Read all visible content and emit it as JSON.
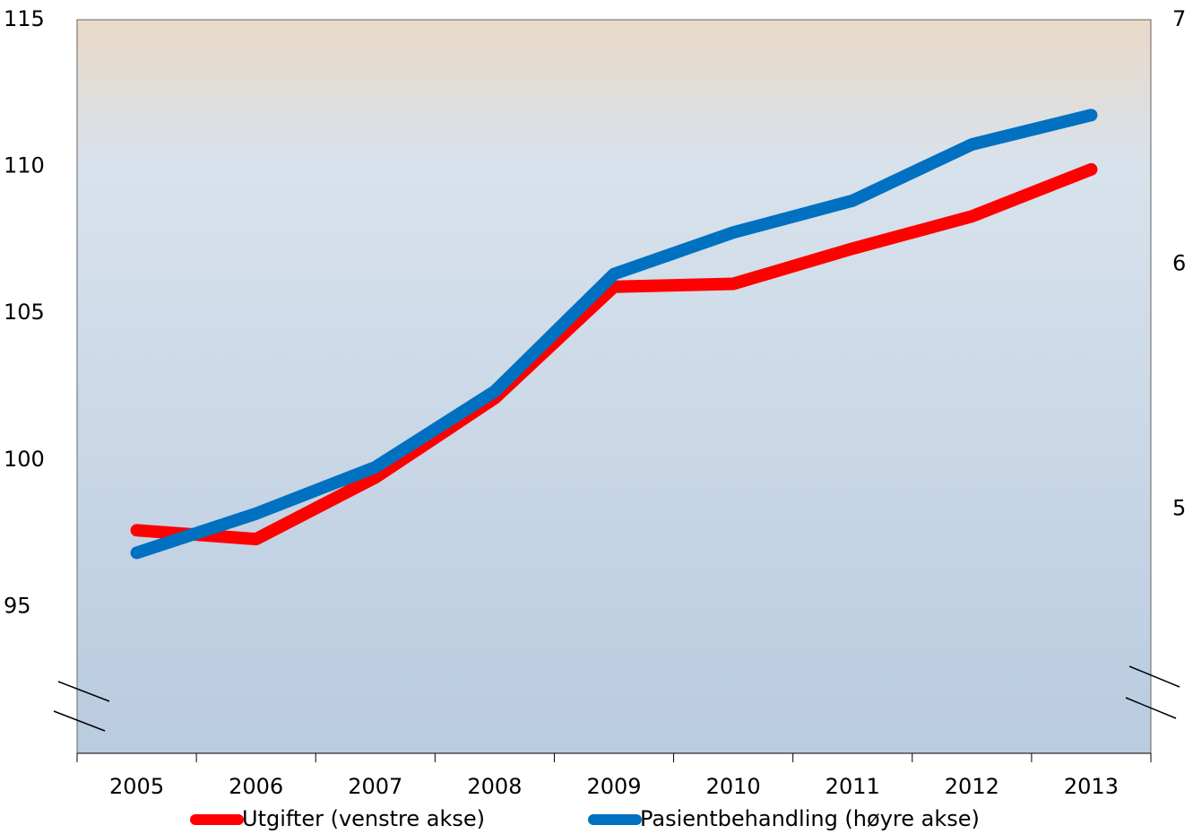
{
  "chart_data": {
    "type": "line",
    "categories": [
      "2005",
      "2006",
      "2007",
      "2008",
      "2009",
      "2010",
      "2011",
      "2012",
      "2013"
    ],
    "series": [
      {
        "name": "Utgifter (venstre akse)",
        "color": "#ff0000",
        "values": [
          97.6,
          97.3,
          99.4,
          102.1,
          105.9,
          106.0,
          107.2,
          108.3,
          109.9
        ]
      },
      {
        "name": "Pasientbehandling (høyre akse)",
        "color": "#0070c0",
        "axis": "y2",
        "values": [
          4.82,
          4.98,
          5.17,
          5.48,
          5.96,
          6.13,
          6.26,
          6.49,
          6.61
        ]
      }
    ],
    "ylim": [
      90,
      115
    ],
    "yticks": [
      95,
      100,
      105,
      110,
      115
    ],
    "y2lim": [
      4,
      7
    ],
    "y2ticks": [
      5,
      6,
      7
    ],
    "legend": "bottom"
  }
}
